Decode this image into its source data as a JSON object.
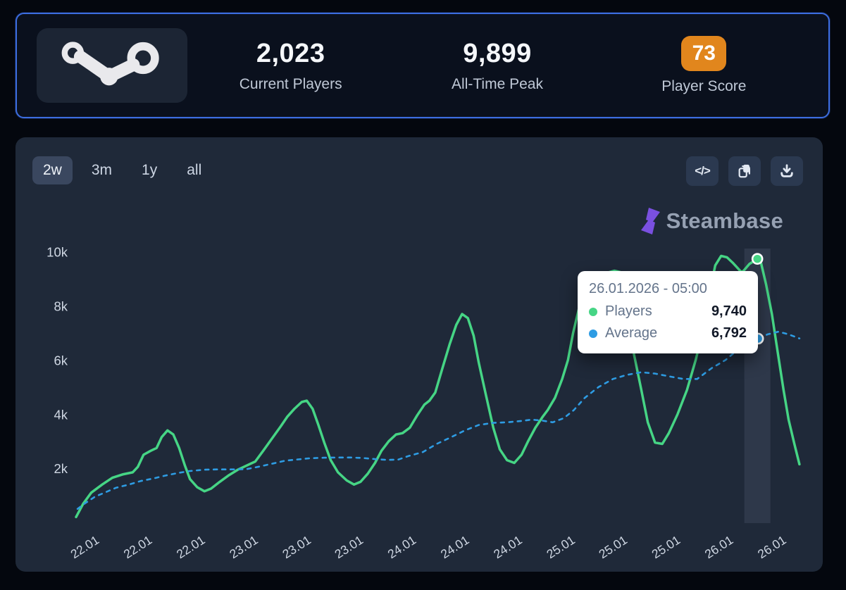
{
  "stats_bar": {
    "current_players": {
      "value": "2,023",
      "label": "Current Players"
    },
    "all_time_peak": {
      "value": "9,899",
      "label": "All-Time Peak"
    },
    "player_score": {
      "value": "73",
      "label": "Player Score",
      "badge_color": "#e1861d"
    }
  },
  "toolbar": {
    "ranges": [
      {
        "label": "2w",
        "selected": true
      },
      {
        "label": "3m",
        "selected": false
      },
      {
        "label": "1y",
        "selected": false
      },
      {
        "label": "all",
        "selected": false
      }
    ],
    "embed_glyph": "</>",
    "actions": [
      "embed-code",
      "copy",
      "download"
    ]
  },
  "watermark": {
    "text": "Steambase",
    "icon_color": "#7a50e0"
  },
  "tooltip": {
    "date": "26.01.2026 - 05:00",
    "rows": [
      {
        "label": "Players",
        "value": "9,740",
        "color": "#46d585"
      },
      {
        "label": "Average",
        "value": "6,792",
        "color": "#2e9ce3"
      }
    ]
  },
  "chart_data": {
    "type": "line",
    "title": "",
    "xlabel": "",
    "ylabel": "",
    "grid": false,
    "legend_position": "tooltip",
    "ylim": [
      0,
      10200
    ],
    "yticks": [
      {
        "value": 2000,
        "label": "2k"
      },
      {
        "value": 4000,
        "label": "4k"
      },
      {
        "value": 6000,
        "label": "6k"
      },
      {
        "value": 8000,
        "label": "8k"
      },
      {
        "value": 10000,
        "label": "10k"
      }
    ],
    "xticks": [
      {
        "pos": 0.021,
        "label": "22.01"
      },
      {
        "pos": 0.094,
        "label": "22.01"
      },
      {
        "pos": 0.167,
        "label": "22.01"
      },
      {
        "pos": 0.24,
        "label": "23.01"
      },
      {
        "pos": 0.313,
        "label": "23.01"
      },
      {
        "pos": 0.385,
        "label": "23.01"
      },
      {
        "pos": 0.458,
        "label": "24.01"
      },
      {
        "pos": 0.531,
        "label": "24.01"
      },
      {
        "pos": 0.604,
        "label": "24.01"
      },
      {
        "pos": 0.677,
        "label": "25.01"
      },
      {
        "pos": 0.749,
        "label": "25.01"
      },
      {
        "pos": 0.822,
        "label": "25.01"
      },
      {
        "pos": 0.895,
        "label": "26.01"
      },
      {
        "pos": 0.968,
        "label": "26.01"
      }
    ],
    "series": [
      {
        "name": "Players",
        "color": "#46d585",
        "style": "solid",
        "width": 3.5,
        "points": [
          [
            0.0,
            200
          ],
          [
            0.01,
            700
          ],
          [
            0.021,
            1100
          ],
          [
            0.036,
            1400
          ],
          [
            0.05,
            1650
          ],
          [
            0.065,
            1780
          ],
          [
            0.078,
            1850
          ],
          [
            0.085,
            2050
          ],
          [
            0.093,
            2500
          ],
          [
            0.103,
            2650
          ],
          [
            0.111,
            2750
          ],
          [
            0.118,
            3150
          ],
          [
            0.126,
            3400
          ],
          [
            0.134,
            3250
          ],
          [
            0.142,
            2750
          ],
          [
            0.15,
            2100
          ],
          [
            0.157,
            1600
          ],
          [
            0.167,
            1300
          ],
          [
            0.177,
            1150
          ],
          [
            0.186,
            1250
          ],
          [
            0.198,
            1500
          ],
          [
            0.211,
            1750
          ],
          [
            0.223,
            1950
          ],
          [
            0.235,
            2100
          ],
          [
            0.247,
            2250
          ],
          [
            0.258,
            2650
          ],
          [
            0.27,
            3100
          ],
          [
            0.282,
            3550
          ],
          [
            0.291,
            3900
          ],
          [
            0.301,
            4200
          ],
          [
            0.311,
            4450
          ],
          [
            0.318,
            4500
          ],
          [
            0.326,
            4200
          ],
          [
            0.334,
            3600
          ],
          [
            0.342,
            2950
          ],
          [
            0.351,
            2300
          ],
          [
            0.361,
            1850
          ],
          [
            0.373,
            1550
          ],
          [
            0.383,
            1400
          ],
          [
            0.392,
            1500
          ],
          [
            0.402,
            1800
          ],
          [
            0.412,
            2200
          ],
          [
            0.421,
            2650
          ],
          [
            0.431,
            3000
          ],
          [
            0.441,
            3250
          ],
          [
            0.45,
            3300
          ],
          [
            0.46,
            3500
          ],
          [
            0.47,
            3950
          ],
          [
            0.48,
            4350
          ],
          [
            0.487,
            4500
          ],
          [
            0.495,
            4800
          ],
          [
            0.505,
            5700
          ],
          [
            0.515,
            6600
          ],
          [
            0.524,
            7300
          ],
          [
            0.532,
            7700
          ],
          [
            0.54,
            7550
          ],
          [
            0.548,
            6900
          ],
          [
            0.555,
            5900
          ],
          [
            0.565,
            4700
          ],
          [
            0.575,
            3500
          ],
          [
            0.584,
            2700
          ],
          [
            0.594,
            2300
          ],
          [
            0.604,
            2200
          ],
          [
            0.614,
            2500
          ],
          [
            0.623,
            3000
          ],
          [
            0.633,
            3500
          ],
          [
            0.643,
            3900
          ],
          [
            0.65,
            4150
          ],
          [
            0.66,
            4600
          ],
          [
            0.67,
            5300
          ],
          [
            0.678,
            6000
          ],
          [
            0.685,
            7000
          ],
          [
            0.693,
            7900
          ],
          [
            0.703,
            8600
          ],
          [
            0.715,
            9000
          ],
          [
            0.728,
            9200
          ],
          [
            0.742,
            9300
          ],
          [
            0.75,
            9250
          ],
          [
            0.759,
            7800
          ],
          [
            0.769,
            6200
          ],
          [
            0.779,
            4900
          ],
          [
            0.788,
            3700
          ],
          [
            0.798,
            2950
          ],
          [
            0.808,
            2900
          ],
          [
            0.817,
            3300
          ],
          [
            0.829,
            4000
          ],
          [
            0.842,
            4900
          ],
          [
            0.854,
            6000
          ],
          [
            0.866,
            7300
          ],
          [
            0.874,
            8600
          ],
          [
            0.881,
            9500
          ],
          [
            0.889,
            9850
          ],
          [
            0.897,
            9800
          ],
          [
            0.905,
            9600
          ],
          [
            0.917,
            9250
          ],
          [
            0.92,
            9300
          ],
          [
            0.928,
            9550
          ],
          [
            0.939,
            9740
          ],
          [
            0.944,
            9600
          ],
          [
            0.951,
            8800
          ],
          [
            0.959,
            7700
          ],
          [
            0.967,
            6300
          ],
          [
            0.975,
            4900
          ],
          [
            0.982,
            3800
          ],
          [
            0.99,
            2900
          ],
          [
            0.997,
            2150
          ]
        ]
      },
      {
        "name": "Average",
        "color": "#2e9ce3",
        "style": "dashed",
        "width": 2.6,
        "points": [
          [
            0.002,
            500
          ],
          [
            0.012,
            700
          ],
          [
            0.026,
            950
          ],
          [
            0.041,
            1120
          ],
          [
            0.055,
            1280
          ],
          [
            0.073,
            1400
          ],
          [
            0.089,
            1530
          ],
          [
            0.106,
            1620
          ],
          [
            0.123,
            1730
          ],
          [
            0.141,
            1830
          ],
          [
            0.157,
            1900
          ],
          [
            0.177,
            1950
          ],
          [
            0.196,
            1960
          ],
          [
            0.216,
            1960
          ],
          [
            0.235,
            1970
          ],
          [
            0.252,
            2060
          ],
          [
            0.272,
            2180
          ],
          [
            0.288,
            2280
          ],
          [
            0.303,
            2320
          ],
          [
            0.322,
            2370
          ],
          [
            0.342,
            2390
          ],
          [
            0.361,
            2400
          ],
          [
            0.378,
            2400
          ],
          [
            0.395,
            2380
          ],
          [
            0.412,
            2340
          ],
          [
            0.429,
            2310
          ],
          [
            0.444,
            2320
          ],
          [
            0.458,
            2450
          ],
          [
            0.478,
            2600
          ],
          [
            0.497,
            2900
          ],
          [
            0.517,
            3150
          ],
          [
            0.536,
            3400
          ],
          [
            0.555,
            3600
          ],
          [
            0.575,
            3680
          ],
          [
            0.594,
            3700
          ],
          [
            0.614,
            3750
          ],
          [
            0.628,
            3800
          ],
          [
            0.643,
            3760
          ],
          [
            0.657,
            3700
          ],
          [
            0.672,
            3850
          ],
          [
            0.686,
            4150
          ],
          [
            0.701,
            4600
          ],
          [
            0.72,
            5000
          ],
          [
            0.74,
            5300
          ],
          [
            0.759,
            5450
          ],
          [
            0.779,
            5550
          ],
          [
            0.798,
            5500
          ],
          [
            0.817,
            5400
          ],
          [
            0.837,
            5300
          ],
          [
            0.856,
            5300
          ],
          [
            0.876,
            5700
          ],
          [
            0.895,
            6000
          ],
          [
            0.915,
            6450
          ],
          [
            0.929,
            6650
          ],
          [
            0.94,
            6792
          ],
          [
            0.953,
            6950
          ],
          [
            0.968,
            7050
          ],
          [
            0.982,
            6950
          ],
          [
            0.997,
            6800
          ]
        ]
      }
    ],
    "highlight": {
      "band_start": 0.921,
      "band_end": 0.957,
      "band_color": "rgba(150,165,195,0.13)",
      "markers": [
        {
          "series": "Players",
          "x": 0.939,
          "value": 9740
        },
        {
          "series": "Average",
          "x": 0.94,
          "value": 6792
        }
      ]
    }
  }
}
